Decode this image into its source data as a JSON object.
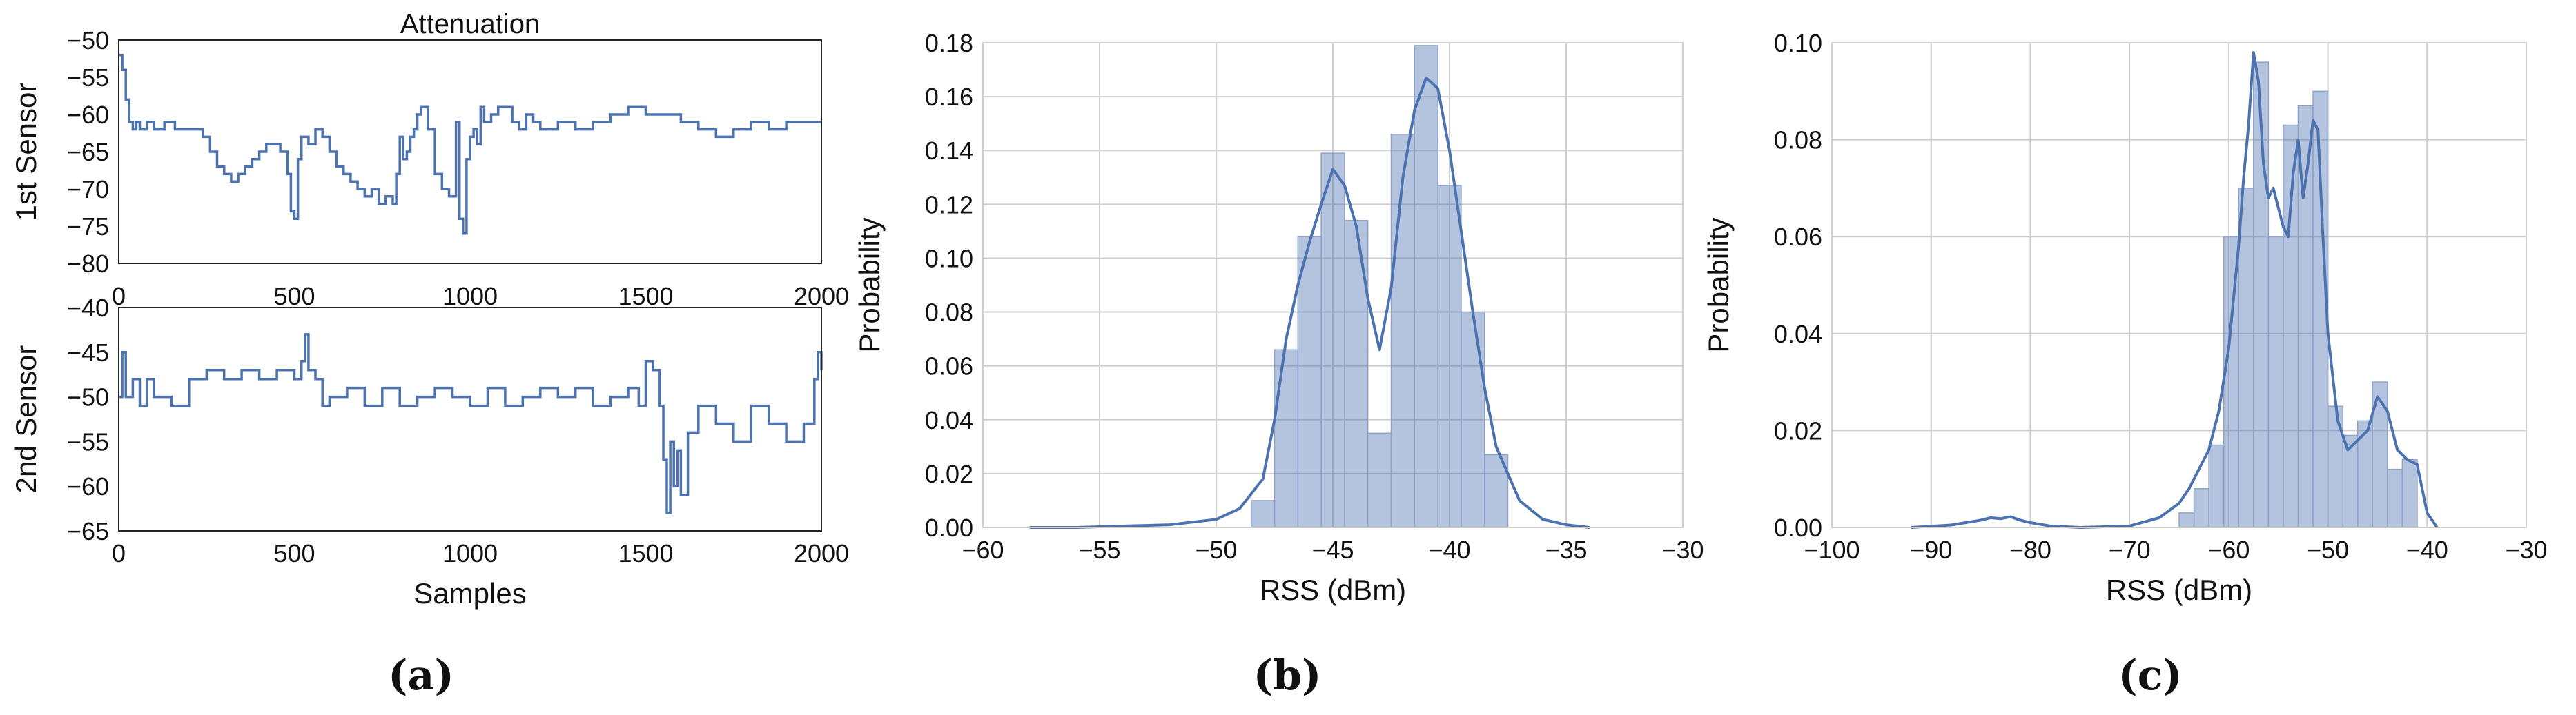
{
  "chart_data": [
    {
      "id": "a-top",
      "type": "line",
      "title": "Attenuation",
      "xlabel": "",
      "ylabel": "1st Sensor",
      "xlim": [
        0,
        2000
      ],
      "ylim": [
        -80,
        -50
      ],
      "xticks": [
        0,
        500,
        1000,
        1500,
        2000
      ],
      "yticks": [
        -80,
        -75,
        -70,
        -65,
        -60,
        -55,
        -50
      ],
      "grid": false,
      "color": "#4c72b0",
      "series": [
        {
          "x": [
            0,
            10,
            20,
            30,
            40,
            50,
            60,
            80,
            100,
            130,
            160,
            200,
            240,
            260,
            280,
            300,
            320,
            340,
            360,
            380,
            400,
            420,
            440,
            460,
            480,
            490,
            500,
            510,
            520,
            540,
            560,
            580,
            600,
            620,
            640,
            660,
            680,
            700,
            720,
            740,
            760,
            780,
            790,
            800,
            810,
            820,
            830,
            840,
            850,
            860,
            880,
            900,
            920,
            940,
            960,
            970,
            980,
            990,
            1000,
            1010,
            1020,
            1030,
            1040,
            1060,
            1080,
            1100,
            1120,
            1140,
            1160,
            1180,
            1200,
            1250,
            1300,
            1350,
            1400,
            1450,
            1500,
            1550,
            1600,
            1650,
            1700,
            1750,
            1800,
            1850,
            1900,
            1950,
            2000
          ],
          "y": [
            -52,
            -54,
            -58,
            -61,
            -62,
            -61,
            -62,
            -61,
            -62,
            -61,
            -62,
            -62,
            -63,
            -65,
            -67,
            -68,
            -69,
            -68,
            -67,
            -66,
            -65,
            -64,
            -64,
            -65,
            -68,
            -73,
            -74,
            -66,
            -63,
            -64,
            -62,
            -63,
            -65,
            -67,
            -68,
            -69,
            -70,
            -71,
            -70,
            -72,
            -71,
            -72,
            -68,
            -63,
            -66,
            -65,
            -63,
            -62,
            -60,
            -59,
            -62,
            -68,
            -70,
            -71,
            -61,
            -74,
            -76,
            -66,
            -63,
            -62,
            -64,
            -59,
            -61,
            -60,
            -59,
            -59,
            -61,
            -62,
            -60,
            -61,
            -62,
            -61,
            -62,
            -61,
            -60,
            -59,
            -60,
            -60,
            -61,
            -62,
            -63,
            -62,
            -61,
            -62,
            -61,
            -61,
            -61
          ]
        }
      ]
    },
    {
      "id": "a-bottom",
      "type": "line",
      "xlabel": "Samples",
      "ylabel": "2nd Sensor",
      "xlim": [
        0,
        2000
      ],
      "ylim": [
        -65,
        -40
      ],
      "xticks": [
        0,
        500,
        1000,
        1500,
        2000
      ],
      "yticks": [
        -65,
        -60,
        -55,
        -50,
        -45,
        -40
      ],
      "grid": false,
      "color": "#4c72b0",
      "series": [
        {
          "x": [
            0,
            10,
            20,
            40,
            60,
            80,
            100,
            150,
            190,
            200,
            250,
            300,
            350,
            400,
            450,
            500,
            520,
            530,
            540,
            560,
            580,
            600,
            650,
            700,
            750,
            800,
            850,
            900,
            950,
            1000,
            1050,
            1100,
            1150,
            1200,
            1250,
            1300,
            1350,
            1400,
            1450,
            1480,
            1500,
            1520,
            1540,
            1550,
            1560,
            1570,
            1580,
            1590,
            1600,
            1620,
            1650,
            1700,
            1750,
            1800,
            1850,
            1900,
            1950,
            1970,
            1980,
            1990,
            2000
          ],
          "y": [
            -50,
            -45,
            -50,
            -48,
            -51,
            -48,
            -50,
            -51,
            -51,
            -48,
            -47,
            -48,
            -47,
            -48,
            -47,
            -48,
            -46,
            -43,
            -47,
            -48,
            -51,
            -50,
            -49,
            -51,
            -49,
            -51,
            -50,
            -49,
            -50,
            -51,
            -49,
            -51,
            -50,
            -49,
            -50,
            -49,
            -51,
            -50,
            -49,
            -51,
            -46,
            -47,
            -51,
            -57,
            -63,
            -55,
            -60,
            -56,
            -61,
            -54,
            -51,
            -53,
            -55,
            -51,
            -53,
            -55,
            -53,
            -53,
            -48,
            -45,
            -47
          ]
        }
      ]
    },
    {
      "id": "b",
      "type": "bar",
      "xlabel": "RSS (dBm)",
      "ylabel": "Probability",
      "xlim": [
        -60,
        -30
      ],
      "ylim": [
        0,
        0.18
      ],
      "xticks": [
        -60,
        -55,
        -50,
        -45,
        -40,
        -35,
        -30
      ],
      "yticks": [
        0.0,
        0.02,
        0.04,
        0.06,
        0.08,
        0.1,
        0.12,
        0.14,
        0.16,
        0.18
      ],
      "grid": true,
      "color": "#4c72b0",
      "bin_edges": [
        -48.5,
        -47.5,
        -46.5,
        -45.5,
        -44.5,
        -43.5,
        -42.5,
        -41.5,
        -40.5,
        -39.5,
        -38.5,
        -37.5
      ],
      "values": [
        0.01,
        0.066,
        0.108,
        0.139,
        0.114,
        0.035,
        0.146,
        0.179,
        0.127,
        0.08,
        0.027
      ],
      "kde": {
        "x": [
          -58,
          -56,
          -54,
          -52,
          -50,
          -49,
          -48,
          -47.5,
          -47,
          -46.5,
          -46,
          -45.5,
          -45,
          -44.5,
          -44,
          -43.5,
          -43,
          -42.5,
          -42,
          -41.5,
          -41,
          -40.5,
          -40,
          -39.5,
          -39,
          -38.5,
          -38,
          -37,
          -36,
          -35,
          -34
        ],
        "y": [
          0.0,
          0.0,
          0.0005,
          0.001,
          0.003,
          0.007,
          0.018,
          0.04,
          0.07,
          0.09,
          0.106,
          0.12,
          0.133,
          0.127,
          0.112,
          0.085,
          0.066,
          0.089,
          0.13,
          0.155,
          0.167,
          0.163,
          0.14,
          0.11,
          0.08,
          0.052,
          0.03,
          0.01,
          0.003,
          0.001,
          0.0
        ]
      }
    },
    {
      "id": "c",
      "type": "bar",
      "xlabel": "RSS (dBm)",
      "ylabel": "Probability",
      "xlim": [
        -100,
        -30
      ],
      "ylim": [
        0,
        0.1
      ],
      "xticks": [
        -100,
        -90,
        -80,
        -70,
        -60,
        -50,
        -40,
        -30
      ],
      "yticks": [
        0.0,
        0.02,
        0.04,
        0.06,
        0.08,
        0.1
      ],
      "grid": true,
      "color": "#4c72b0",
      "bin_edges": [
        -65,
        -63.5,
        -62,
        -60.5,
        -59,
        -57.5,
        -56,
        -54.5,
        -53,
        -51.5,
        -50,
        -48.5,
        -47,
        -45.5,
        -44,
        -42.5,
        -41
      ],
      "values": [
        0.003,
        0.008,
        0.017,
        0.06,
        0.07,
        0.096,
        0.06,
        0.083,
        0.087,
        0.09,
        0.025,
        0.019,
        0.022,
        0.03,
        0.012,
        0.014
      ],
      "kde": {
        "x": [
          -92,
          -88,
          -85,
          -84,
          -83,
          -82,
          -81,
          -80,
          -78,
          -75,
          -70,
          -67,
          -65,
          -64,
          -63,
          -62,
          -61,
          -60,
          -59,
          -58.5,
          -58,
          -57.5,
          -57,
          -56.5,
          -56,
          -55.5,
          -55,
          -54.5,
          -54,
          -53.5,
          -53,
          -52.5,
          -52,
          -51.5,
          -51,
          -50.5,
          -50,
          -49,
          -48,
          -47,
          -46,
          -45,
          -44,
          -43,
          -42,
          -41,
          -40,
          -39
        ],
        "y": [
          0.0,
          0.0005,
          0.0015,
          0.002,
          0.0018,
          0.0022,
          0.0015,
          0.001,
          0.0003,
          0.0,
          0.0003,
          0.002,
          0.005,
          0.008,
          0.012,
          0.016,
          0.024,
          0.037,
          0.058,
          0.072,
          0.083,
          0.098,
          0.092,
          0.075,
          0.068,
          0.07,
          0.066,
          0.062,
          0.06,
          0.073,
          0.08,
          0.068,
          0.075,
          0.084,
          0.082,
          0.06,
          0.04,
          0.022,
          0.016,
          0.018,
          0.02,
          0.027,
          0.024,
          0.016,
          0.014,
          0.013,
          0.003,
          0.0
        ]
      }
    }
  ],
  "captions": [
    "(a)",
    "(b)",
    "(c)"
  ]
}
